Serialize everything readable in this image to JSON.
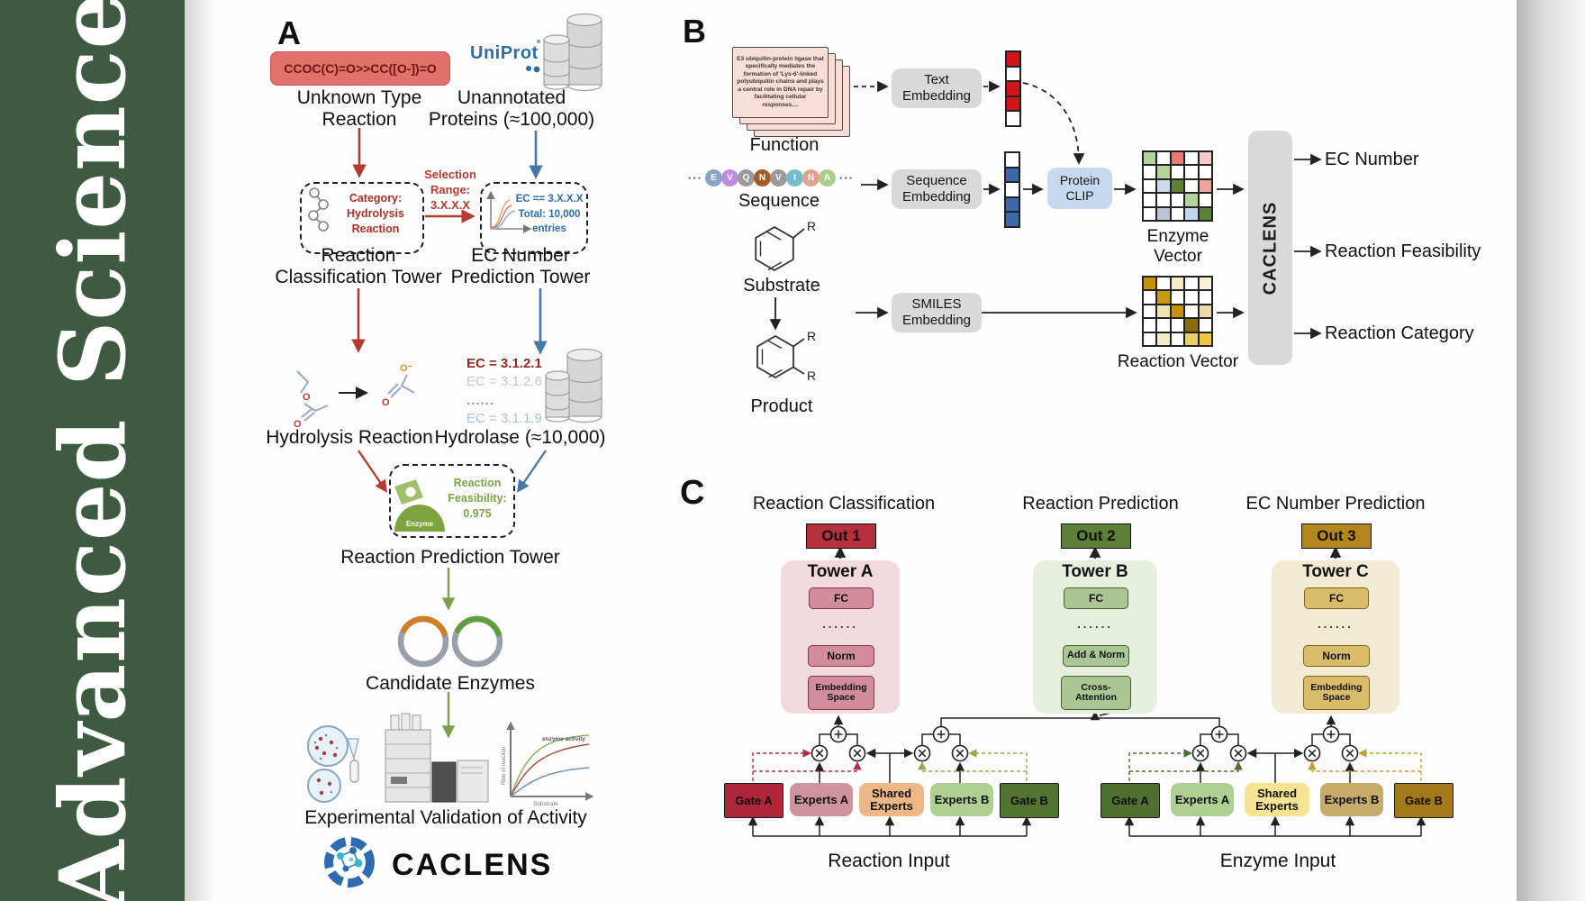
{
  "journal": {
    "title": "Advanced Science"
  },
  "colors": {
    "sidebar_green": "#3e5b41",
    "out1": "#b52f3d",
    "out2": "#5d8038",
    "out3": "#b3871d",
    "red_arrow": "#b23b32",
    "blue_arrow": "#4878a8",
    "green_arrow": "#7f9e52"
  },
  "panelA": {
    "label": "A",
    "smiles": "CCOC(C)=O>>CC([O-])=O",
    "unknown_line1": "Unknown Type",
    "unknown_line2": "Reaction",
    "uniprot": "UniProt",
    "unannotated_line1": "Unannotated",
    "unannotated_line2": "Proteins (≈100,000)",
    "category_line1": "Category:",
    "category_line2": "Hydrolysis",
    "category_line3": "Reaction",
    "selection_line1": "Selection",
    "selection_line2": "Range:",
    "selection_line3": "3.X.X.X",
    "ec_line1": "EC == 3.X.X.X",
    "ec_line2": "Total: 10,000",
    "ec_line3": "entries",
    "tower1_line1": "Reaction",
    "tower1_line2": "Classification Tower",
    "tower2_line1": "EC Number",
    "tower2_line2": "Prediction Tower",
    "hydrolysis_label": "Hydrolysis Reaction",
    "ec_list": [
      "EC = 3.1.2.1",
      "EC = 3.1.2.6",
      "......",
      "EC = 3.1.1.9"
    ],
    "hydrolase_label": "Hydrolase (≈10,000)",
    "enzyme_badge": "Enzyme",
    "feas_line1": "Reaction",
    "feas_line2": "Feasibility:",
    "feas_line3": "0.975",
    "tower3_label": "Reaction Prediction Tower",
    "candidates_label": "Candidate Enzymes",
    "plot": {
      "curve_label": "enzyme activity",
      "ylabel": "Rate of reaction",
      "xlabel": "Substrate"
    },
    "validation_label": "Experimental Validation of Activity",
    "logo_text": "CACLENS"
  },
  "panelB": {
    "label": "B",
    "function_card_text": "E3 ubiquitin-protein ligase that specifically mediates the formation of 'Lys-6'-linked polyubiquitin chains and plays a central role in DNA repair by facilitating cellular responses....",
    "function_label": "Function",
    "ellipsis": "···",
    "sequence": [
      {
        "letter": "E",
        "color": "#8ba3c7"
      },
      {
        "letter": "V",
        "color": "#b98ee2"
      },
      {
        "letter": "Q",
        "color": "#9a9a9a"
      },
      {
        "letter": "N",
        "color": "#a55c28"
      },
      {
        "letter": "V",
        "color": "#9a9a9a"
      },
      {
        "letter": "I",
        "color": "#74bec9"
      },
      {
        "letter": "N",
        "color": "#e2a091"
      },
      {
        "letter": "A",
        "color": "#accd8c"
      }
    ],
    "sequence_label": "Sequence",
    "substrate_label": "Substrate",
    "product_label": "Product",
    "r_group": "R",
    "text_embedding_line1": "Text",
    "text_embedding_line2": "Embedding",
    "seq_embedding_line1": "Sequence",
    "seq_embedding_line2": "Embedding",
    "smiles_embedding_line1": "SMILES",
    "smiles_embedding_line2": "Embedding",
    "clip_line1": "Protein",
    "clip_line2": "CLIP",
    "text_vector": [
      "#d01717",
      "#ffffff",
      "#d01717",
      "#d01717",
      "#ffffff"
    ],
    "seq_vector": [
      "#ffffff",
      "#3d68a9",
      "#ffffff",
      "#3d68a9",
      "#3d68a9"
    ],
    "enzyme_vector_label": "Enzyme Vector",
    "reaction_vector_label": "Reaction Vector",
    "enzyme_matrix": [
      "#b4d49b",
      "#ffffff",
      "#e87b74",
      "#ffffff",
      "#f6cbc8",
      "#ffffff",
      "#b4d49b",
      "#ffffff",
      "#ffffff",
      "#ffffff",
      "#ffffff",
      "#cbdcf1",
      "#5d8038",
      "#ffffff",
      "#f0a19c",
      "#ffffff",
      "#ffffff",
      "#ffffff",
      "#b4d49b",
      "#ffffff",
      "#ffffff",
      "#bac5d2",
      "#ffffff",
      "#c2d5ec",
      "#5d8038"
    ],
    "reaction_matrix": [
      "#c6920e",
      "#ffffff",
      "#f4ebc7",
      "#ffffff",
      "#f8f1d7",
      "#ffffff",
      "#c6980e",
      "#ffffff",
      "#ffffff",
      "#ffffff",
      "#ffffff",
      "#f0e3b2",
      "#c6920e",
      "#ffffff",
      "#ecdba8",
      "#ffffff",
      "#ffffff",
      "#ffffff",
      "#8a6d0b",
      "#ffffff",
      "#ffffff",
      "#f4ecca",
      "#ffffff",
      "#ead06a",
      "#eec53b"
    ],
    "caclens_bar": "CACLENS",
    "outputs": [
      "EC Number",
      "Reaction Feasibility",
      "Reaction Category"
    ]
  },
  "panelC": {
    "label": "C",
    "titles": [
      "Reaction Classification",
      "Reaction Prediction",
      "EC Number Prediction"
    ],
    "outs": [
      "Out 1",
      "Out 2",
      "Out 3"
    ],
    "dots": "......",
    "towerA": {
      "title": "Tower A",
      "fc": "FC",
      "mid": "Norm",
      "bottom_line1": "Embedding",
      "bottom_line2": "Space"
    },
    "towerB": {
      "title": "Tower B",
      "fc": "FC",
      "mid": "Add & Norm",
      "bottom_line1": "Cross-",
      "bottom_line2": "Attention"
    },
    "towerC": {
      "title": "Tower C",
      "fc": "FC",
      "mid": "Norm",
      "bottom_line1": "Embedding",
      "bottom_line2": "Space"
    },
    "reaction_group": {
      "boxes": [
        {
          "label": "Gate A",
          "bg": "#ae2639",
          "type": "gate"
        },
        {
          "label": "Experts A",
          "bg": "#cf93a0",
          "type": "experts"
        },
        {
          "label": "Shared Experts",
          "bg": "#eeb886",
          "type": "experts"
        },
        {
          "label": "Experts B",
          "bg": "#aed092",
          "type": "experts"
        },
        {
          "label": "Gate B",
          "bg": "#537331",
          "type": "gate"
        }
      ],
      "caption": "Reaction Input"
    },
    "enzyme_group": {
      "boxes": [
        {
          "label": "Gate A",
          "bg": "#4f6f31",
          "type": "gate"
        },
        {
          "label": "Experts A",
          "bg": "#aed092",
          "type": "experts"
        },
        {
          "label": "Shared Experts",
          "bg": "#f6e492",
          "type": "experts"
        },
        {
          "label": "Experts B",
          "bg": "#c6ab6b",
          "type": "experts"
        },
        {
          "label": "Gate B",
          "bg": "#a3791b",
          "type": "gate"
        }
      ],
      "caption": "Enzyme Input"
    }
  }
}
